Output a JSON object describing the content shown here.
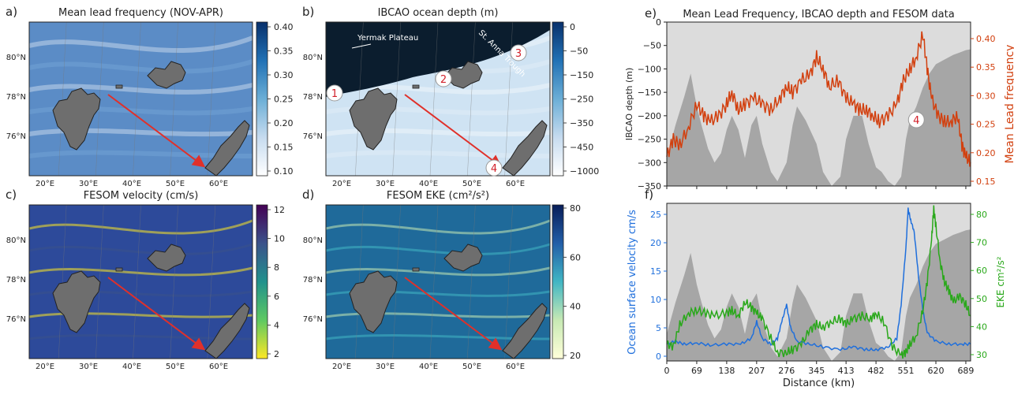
{
  "panels": {
    "a": {
      "letter": "a)",
      "title": "Mean lead frequency (NOV-APR)",
      "colorbar_ticks": [
        "0.40",
        "0.35",
        "0.30",
        "0.25",
        "0.20",
        "0.15",
        "0.10"
      ],
      "colors": [
        "#ffffff",
        "#c6dbef",
        "#6baed6",
        "#2171b5",
        "#08306b"
      ]
    },
    "b": {
      "letter": "b)",
      "title": "IBCAO ocean depth (m)",
      "colorbar_ticks": [
        "0",
        "−50",
        "−150",
        "−250",
        "−350",
        "−450",
        "−1000"
      ],
      "colors": [
        "#ffffff",
        "#c6dbef",
        "#6baed6",
        "#2171b5",
        "#08306b"
      ],
      "labels": {
        "yermak": "Yermak Plateau",
        "st_anna": "St. Anna Trough"
      },
      "markers": [
        "1",
        "2",
        "3",
        "4"
      ]
    },
    "c": {
      "letter": "c)",
      "title": "FESOM velocity (cm/s)",
      "colorbar_ticks": [
        "12",
        "10",
        "8",
        "6",
        "4",
        "2"
      ],
      "colors": [
        "#fde725",
        "#5ec962",
        "#21918c",
        "#3b528b",
        "#440154"
      ]
    },
    "d": {
      "letter": "d)",
      "title": "FESOM EKE (cm²/s²)",
      "colorbar_ticks": [
        "80",
        "60",
        "40",
        "20"
      ],
      "colors": [
        "#ffffd9",
        "#c7e9b4",
        "#41b6c4",
        "#225ea8",
        "#081d58"
      ]
    }
  },
  "map_axes": {
    "lat_labels": [
      "80°N",
      "78°N",
      "76°N"
    ],
    "lon_labels": [
      "20°E",
      "30°E",
      "40°E",
      "50°E",
      "60°E"
    ]
  },
  "chart_data": [
    {
      "panel": "e",
      "letter": "e)",
      "type": "line",
      "title": "Mean Lead Frequency, IBCAO depth and FESOM data",
      "ylabel_left": "IBCAO depth (m)",
      "ylabel_right": "Mean Lead frequency",
      "ylim_left": [
        -350,
        0
      ],
      "ylim_right": [
        0.15,
        0.43
      ],
      "yticks_left": [
        "0",
        "−50",
        "−100",
        "−150",
        "−200",
        "−250",
        "−300",
        "−350"
      ],
      "yticks_right": [
        "0.40",
        "0.35",
        "0.30",
        "0.25",
        "0.20",
        "0.15"
      ],
      "xlim": [
        0,
        700
      ],
      "marker": "4",
      "colors": {
        "depth": "#a6a6a6",
        "lead": "#d2400f",
        "background": "#dcdcdc"
      },
      "series": [
        {
          "name": "",
          "kind": "area",
          "x": [
            0,
            20,
            40,
            55,
            69,
            80,
            95,
            110,
            125,
            138,
            150,
            165,
            180,
            195,
            207,
            220,
            240,
            255,
            276,
            290,
            300,
            320,
            345,
            360,
            380,
            400,
            413,
            430,
            450,
            465,
            482,
            495,
            510,
            525,
            540,
            551,
            560,
            575,
            590,
            605,
            620,
            640,
            660,
            675,
            689,
            700
          ],
          "y": [
            -290,
            -220,
            -160,
            -110,
            -180,
            -220,
            -270,
            -300,
            -280,
            -230,
            -200,
            -230,
            -290,
            -220,
            -200,
            -260,
            -320,
            -340,
            -300,
            -220,
            -180,
            -210,
            -260,
            -320,
            -350,
            -330,
            -250,
            -200,
            -200,
            -260,
            -310,
            -320,
            -340,
            -350,
            -330,
            -250,
            -210,
            -180,
            -140,
            -110,
            -90,
            -80,
            -70,
            -65,
            -60,
            -58
          ]
        },
        {
          "name": "",
          "kind": "line",
          "x": [
            0,
            15,
            30,
            50,
            69,
            85,
            100,
            120,
            138,
            150,
            165,
            180,
            200,
            220,
            240,
            260,
            276,
            290,
            310,
            330,
            345,
            360,
            375,
            395,
            413,
            430,
            445,
            460,
            475,
            490,
            510,
            530,
            545,
            560,
            575,
            590,
            600,
            610,
            625,
            640,
            655,
            670,
            680,
            689,
            700
          ],
          "y": [
            0.2,
            0.23,
            0.22,
            0.25,
            0.29,
            0.27,
            0.26,
            0.27,
            0.29,
            0.31,
            0.28,
            0.29,
            0.3,
            0.29,
            0.28,
            0.3,
            0.32,
            0.31,
            0.33,
            0.34,
            0.37,
            0.35,
            0.32,
            0.33,
            0.3,
            0.29,
            0.28,
            0.28,
            0.27,
            0.26,
            0.27,
            0.29,
            0.33,
            0.35,
            0.37,
            0.41,
            0.35,
            0.3,
            0.27,
            0.26,
            0.26,
            0.27,
            0.22,
            0.2,
            0.19
          ]
        }
      ]
    },
    {
      "panel": "f",
      "letter": "f)",
      "type": "line",
      "xlabel": "Distance (km)",
      "ylabel_left": "Ocean surface velocity cm/s",
      "ylabel_right": "EKE cm²/s²",
      "ylim_left": [
        0,
        28
      ],
      "ylim_right": [
        27,
        83
      ],
      "xlim": [
        0,
        700
      ],
      "yticks_left": [
        "25",
        "20",
        "15",
        "10",
        "5",
        "0"
      ],
      "yticks_right": [
        "80",
        "70",
        "60",
        "50",
        "40",
        "30"
      ],
      "xticks": [
        "0",
        "69",
        "138",
        "207",
        "276",
        "345",
        "413",
        "482",
        "551",
        "620",
        "689"
      ],
      "colors": {
        "depth": "#a6a6a6",
        "velocity": "#1f6fdc",
        "eke": "#29a81a",
        "background": "#dcdcdc"
      },
      "series": [
        {
          "name": "",
          "kind": "area",
          "x": [
            0,
            20,
            40,
            55,
            69,
            80,
            95,
            110,
            125,
            138,
            150,
            165,
            180,
            195,
            207,
            220,
            240,
            255,
            276,
            290,
            300,
            320,
            345,
            360,
            380,
            400,
            413,
            430,
            450,
            465,
            482,
            495,
            510,
            525,
            540,
            551,
            560,
            575,
            590,
            605,
            620,
            640,
            660,
            675,
            689,
            700
          ],
          "y": [
            -290,
            -220,
            -160,
            -110,
            -180,
            -220,
            -270,
            -300,
            -280,
            -230,
            -200,
            -230,
            -290,
            -220,
            -200,
            -260,
            -320,
            -340,
            -300,
            -220,
            -180,
            -210,
            -260,
            -320,
            -350,
            -330,
            -250,
            -200,
            -200,
            -260,
            -310,
            -320,
            -340,
            -350,
            -330,
            -250,
            -210,
            -180,
            -140,
            -110,
            -90,
            -80,
            -70,
            -65,
            -60,
            -58
          ]
        },
        {
          "name": "",
          "kind": "line",
          "axis": "left",
          "x": [
            0,
            20,
            40,
            69,
            100,
            138,
            170,
            195,
            207,
            220,
            240,
            255,
            265,
            276,
            285,
            300,
            330,
            360,
            400,
            430,
            460,
            482,
            510,
            530,
            540,
            551,
            556,
            562,
            570,
            580,
            590,
            600,
            620,
            650,
            680,
            700
          ],
          "y": [
            3,
            3.5,
            3,
            3.2,
            2.8,
            3,
            3,
            4,
            7,
            4,
            3,
            4,
            7,
            10,
            6,
            3.5,
            3,
            2.5,
            2,
            2.5,
            2,
            2,
            2.5,
            4,
            10,
            20,
            27,
            25,
            23,
            15,
            9,
            5,
            3.5,
            3,
            3,
            3
          ]
        },
        {
          "name": "",
          "kind": "line",
          "axis": "right",
          "x": [
            0,
            15,
            30,
            50,
            69,
            90,
            110,
            138,
            150,
            165,
            180,
            195,
            207,
            220,
            240,
            255,
            276,
            290,
            310,
            330,
            345,
            360,
            380,
            400,
            413,
            430,
            450,
            470,
            482,
            500,
            520,
            540,
            551,
            560,
            575,
            590,
            600,
            610,
            615,
            620,
            630,
            640,
            650,
            660,
            675,
            689,
            700
          ],
          "y": [
            33,
            32,
            40,
            44,
            45,
            44,
            43,
            44,
            45,
            43,
            48,
            46,
            44,
            42,
            35,
            30,
            30,
            31,
            33,
            38,
            40,
            39,
            41,
            42,
            40,
            42,
            43,
            42,
            44,
            41,
            32,
            29,
            30,
            33,
            36,
            45,
            55,
            70,
            81,
            75,
            62,
            55,
            52,
            48,
            50,
            47,
            43
          ]
        }
      ]
    }
  ]
}
